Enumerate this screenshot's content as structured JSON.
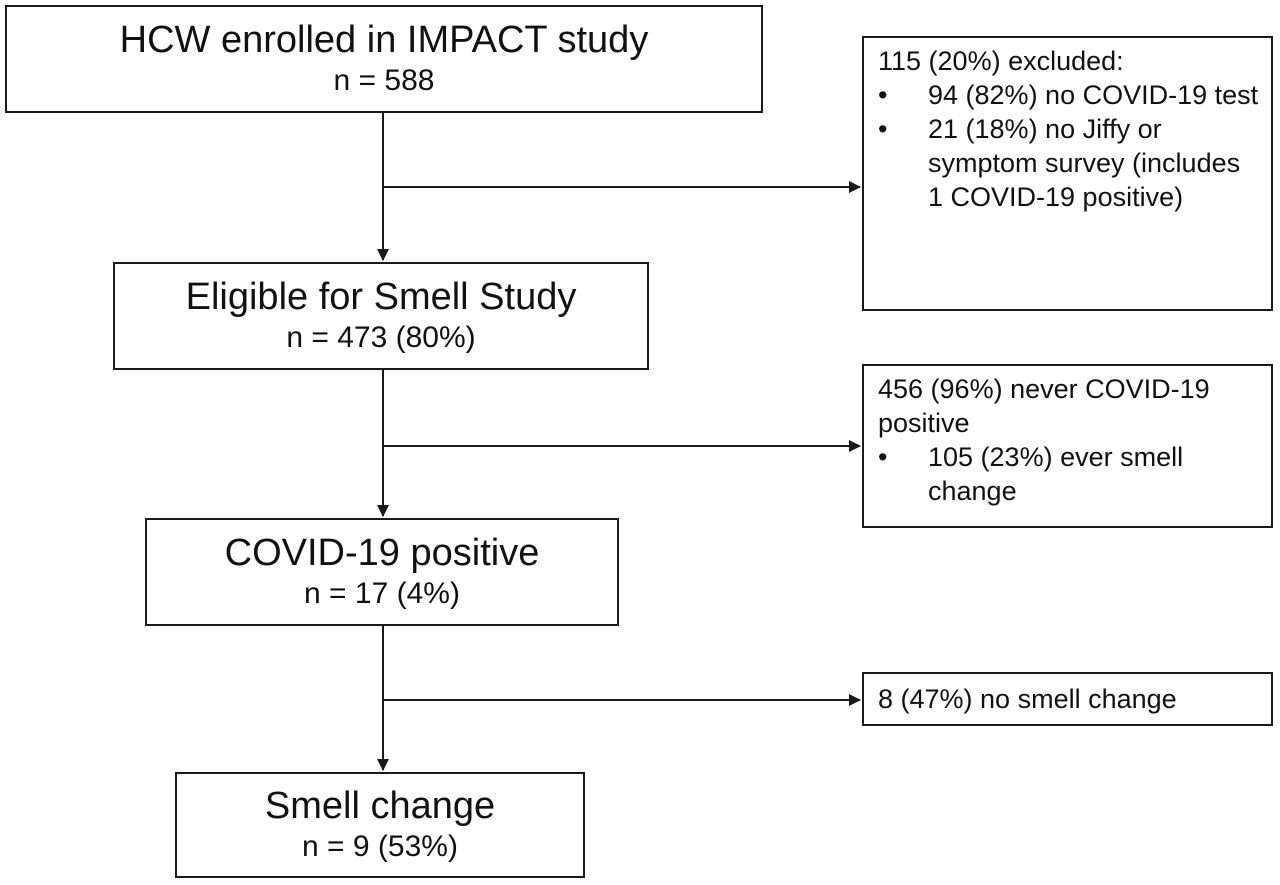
{
  "flow": {
    "enrolled": {
      "title": "HCW enrolled in IMPACT study",
      "count": "n = 588"
    },
    "eligible": {
      "title": "Eligible for Smell Study",
      "count": "n = 473 (80%)"
    },
    "covid_positive": {
      "title": "COVID-19 positive",
      "count": "n = 17 (4%)"
    },
    "smell_change": {
      "title": "Smell change",
      "count": "n = 9 (53%)"
    }
  },
  "side": {
    "excluded": {
      "head": "115 (20%) excluded:",
      "items": [
        "94 (82%) no COVID-19 test",
        "21 (18%) no Jiffy or symptom survey (includes 1 COVID-19 positive)"
      ]
    },
    "never_positive": {
      "head": "456 (96%) never COVID-19 positive",
      "items": [
        "105 (23%) ever smell change"
      ]
    },
    "no_smell_change": {
      "head": "8 (47%) no smell change"
    }
  },
  "bullet_glyph": "•"
}
